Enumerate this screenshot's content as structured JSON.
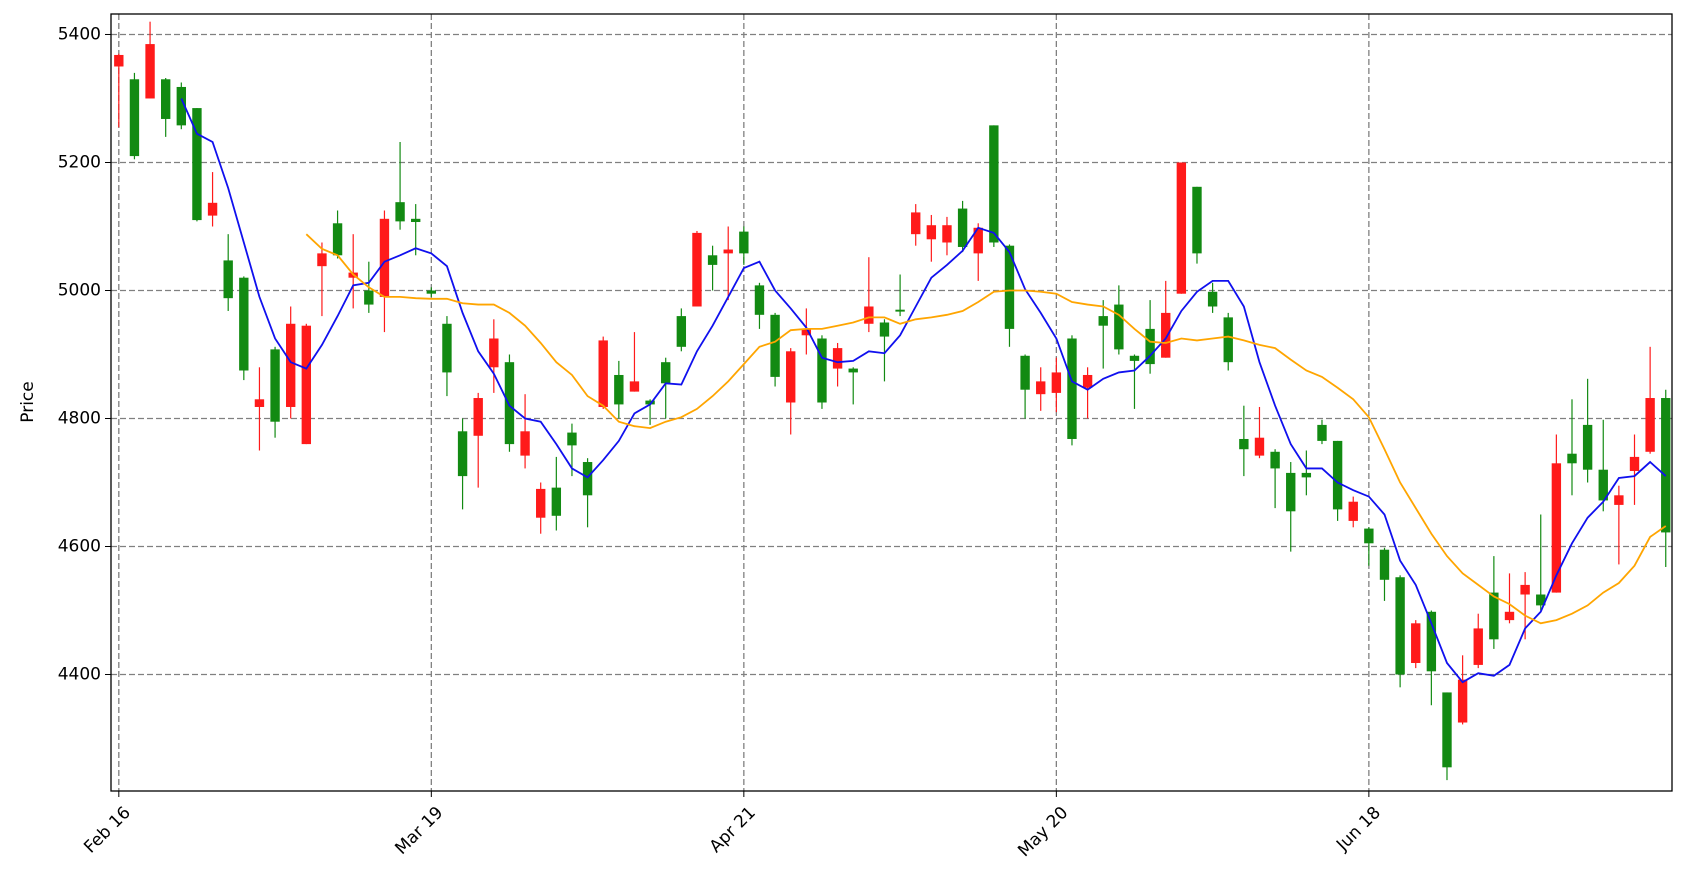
{
  "chart_data": {
    "type": "candlestick",
    "ylabel": "Price",
    "xlim": [
      -0.5,
      99.4
    ],
    "ylim": [
      4218,
      5432
    ],
    "xticks": [
      {
        "value": 0,
        "label": "Feb 16"
      },
      {
        "value": 20,
        "label": "Mar 19"
      },
      {
        "value": 40,
        "label": "Apr 21"
      },
      {
        "value": 60,
        "label": "May 20"
      },
      {
        "value": 80,
        "label": "Jun 18"
      }
    ],
    "yticks": [
      4400,
      4600,
      4800,
      5000,
      5200,
      5400
    ],
    "grid": true,
    "up_color": "#ff1a1a",
    "down_color": "#128a12",
    "open": [
      5350,
      5330,
      5300,
      5330,
      5318,
      5285,
      5117,
      5047,
      5020,
      4818,
      4908,
      4818,
      4760,
      5038,
      5105,
      5020,
      5000,
      4990,
      5138,
      5112,
      5000,
      4948,
      4780,
      4773,
      4880,
      4888,
      4742,
      4645,
      4692,
      4778,
      4732,
      4818,
      4868,
      4842,
      4828,
      4888,
      4960,
      4975,
      5055,
      5058,
      5092,
      5008,
      4962,
      4825,
      4930,
      4925,
      4878,
      4878,
      4948,
      4950,
      4970,
      5088,
      5080,
      5075,
      5128,
      5058,
      5258,
      5070,
      4898,
      4838,
      4840,
      4925,
      4848,
      4960,
      4978,
      4898,
      4940,
      4895,
      4995,
      5162,
      4998,
      4958,
      4768,
      4742,
      4748,
      4715,
      4715,
      4790,
      4765,
      4640,
      4628,
      4595,
      4552,
      4418,
      4498,
      4372,
      4325,
      4415,
      4528,
      4485,
      4525,
      4525,
      4528,
      4745,
      4790,
      4720,
      4665,
      4718,
      4748,
      4832
    ],
    "high": [
      5370,
      5340,
      5420,
      5332,
      5325,
      5285,
      5185,
      5088,
      5022,
      4880,
      4912,
      4975,
      4948,
      5075,
      5125,
      5088,
      5045,
      5125,
      5232,
      5135,
      5005,
      4960,
      4800,
      4840,
      4955,
      4900,
      4838,
      4700,
      4740,
      4792,
      4738,
      4928,
      4890,
      4935,
      4830,
      4895,
      4972,
      5093,
      5070,
      5100,
      5100,
      5012,
      4965,
      4910,
      4972,
      4930,
      4918,
      4880,
      5052,
      4955,
      5025,
      5135,
      5118,
      5115,
      5140,
      5105,
      5258,
      5072,
      4900,
      4880,
      4895,
      4930,
      4880,
      4985,
      5008,
      4900,
      4985,
      5015,
      5200,
      5162,
      5012,
      4965,
      4820,
      4818,
      4752,
      4732,
      4750,
      4798,
      4765,
      4678,
      4630,
      4598,
      4555,
      4485,
      4500,
      4372,
      4430,
      4495,
      4585,
      4558,
      4560,
      4650,
      4775,
      4830,
      4862,
      4798,
      4695,
      4775,
      4912,
      4845
    ],
    "low": [
      5255,
      5205,
      5300,
      5240,
      5252,
      5108,
      5100,
      4968,
      4860,
      4750,
      4770,
      4800,
      4760,
      4960,
      5050,
      4972,
      4965,
      4935,
      5095,
      5055,
      4990,
      4835,
      4658,
      4692,
      4840,
      4748,
      4722,
      4620,
      4625,
      4710,
      4630,
      4815,
      4800,
      4842,
      4790,
      4800,
      4905,
      4975,
      5000,
      4985,
      5040,
      4940,
      4850,
      4775,
      4900,
      4815,
      4850,
      4822,
      4935,
      4858,
      4960,
      5070,
      5045,
      5055,
      5060,
      5015,
      5068,
      4912,
      4800,
      4812,
      4810,
      4758,
      4800,
      4878,
      4900,
      4815,
      4870,
      4895,
      4995,
      5042,
      4965,
      4875,
      4710,
      4738,
      4660,
      4592,
      4680,
      4760,
      4640,
      4630,
      4570,
      4515,
      4380,
      4410,
      4352,
      4235,
      4322,
      4410,
      4440,
      4480,
      4455,
      4500,
      4528,
      4680,
      4700,
      4655,
      4572,
      4665,
      4745,
      4568
    ],
    "close": [
      5368,
      5210,
      5385,
      5268,
      5258,
      5110,
      5137,
      4988,
      4875,
      4830,
      4795,
      4948,
      4945,
      5058,
      5055,
      5028,
      4978,
      5112,
      5108,
      5107,
      4995,
      4872,
      4710,
      4832,
      4925,
      4760,
      4780,
      4690,
      4648,
      4758,
      4680,
      4922,
      4822,
      4858,
      4822,
      4855,
      4912,
      5090,
      5040,
      5064,
      5058,
      4962,
      4865,
      4905,
      4940,
      4825,
      4910,
      4872,
      4975,
      4928,
      4967,
      5122,
      5102,
      5102,
      5068,
      5098,
      5075,
      4940,
      4845,
      4858,
      4872,
      4768,
      4868,
      4945,
      4908,
      4890,
      4885,
      4965,
      5200,
      5058,
      4975,
      4888,
      4752,
      4770,
      4722,
      4655,
      4708,
      4765,
      4658,
      4670,
      4605,
      4548,
      4400,
      4480,
      4405,
      4255,
      4392,
      4472,
      4455,
      4498,
      4540,
      4508,
      4730,
      4730,
      4720,
      4672,
      4680,
      4740,
      4832,
      4622
    ],
    "lines": [
      {
        "color": "#1010ee",
        "values": [
          null,
          null,
          null,
          null,
          5300,
          5245,
          5232,
          5160,
          5075,
          4990,
          4925,
          4888,
          4878,
          4915,
          4960,
          5008,
          5012,
          5045,
          5055,
          5066,
          5058,
          5038,
          4965,
          4905,
          4870,
          4820,
          4800,
          4795,
          4760,
          4722,
          4708,
          4735,
          4765,
          4808,
          4822,
          4855,
          4853,
          4905,
          4945,
          4990,
          5035,
          5045,
          5000,
          4972,
          4942,
          4895,
          4888,
          4890,
          4905,
          4902,
          4930,
          4975,
          5020,
          5040,
          5062,
          5098,
          5090,
          5060,
          5002,
          4965,
          4925,
          4858,
          4845,
          4862,
          4872,
          4875,
          4898,
          4925,
          4968,
          4998,
          5015,
          5015,
          4975,
          4888,
          4820,
          4760,
          4722,
          4722,
          4700,
          4688,
          4678,
          4650,
          4578,
          4540,
          4480,
          4418,
          4388,
          4402,
          4398,
          4415,
          4472,
          4498,
          4555,
          4605,
          4645,
          4670,
          4707,
          4710,
          4732,
          4710
        ]
      },
      {
        "color": "#ffa500",
        "values": [
          null,
          null,
          null,
          null,
          null,
          null,
          null,
          null,
          null,
          null,
          null,
          null,
          5088,
          5065,
          5055,
          5025,
          5005,
          4990,
          4990,
          4988,
          4987,
          4987,
          4980,
          4978,
          4978,
          4965,
          4945,
          4918,
          4888,
          4868,
          4835,
          4820,
          4795,
          4788,
          4785,
          4795,
          4802,
          4815,
          4835,
          4858,
          4885,
          4912,
          4920,
          4938,
          4940,
          4940,
          4945,
          4950,
          4958,
          4958,
          4948,
          4955,
          4958,
          4962,
          4968,
          4982,
          4998,
          5000,
          5000,
          4998,
          4995,
          4982,
          4978,
          4975,
          4962,
          4940,
          4920,
          4918,
          4925,
          4922,
          4925,
          4928,
          4922,
          4915,
          4910,
          4892,
          4875,
          4865,
          4848,
          4830,
          4802,
          4752,
          4700,
          4660,
          4620,
          4585,
          4558,
          4540,
          4522,
          4510,
          4492,
          4480,
          4485,
          4495,
          4508,
          4528,
          4543,
          4570,
          4615,
          4632
        ]
      }
    ]
  }
}
